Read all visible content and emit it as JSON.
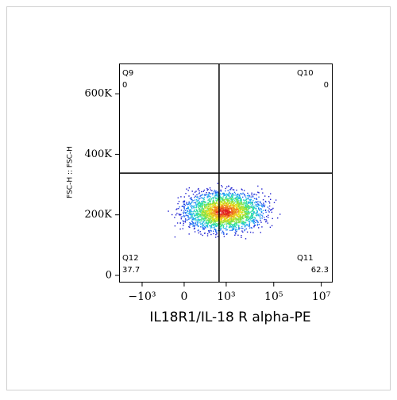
{
  "chart_data": {
    "type": "density",
    "xlabel": "IL18R1/IL-18 R alpha-PE",
    "ylabel": "FSC-H :: FSC-H",
    "xscale": "biexponential",
    "xlim": [
      -9300,
      28000000
    ],
    "xticks": [
      {
        "value": -1000,
        "label": "−10³"
      },
      0,
      {
        "value": 1000,
        "label": "10³"
      },
      {
        "value": 100000,
        "label": "10⁵"
      },
      {
        "value": 10000000,
        "label": "10⁷"
      }
    ],
    "ylim": [
      -21000,
      700000
    ],
    "yticks": [
      0,
      {
        "value": 200000,
        "label": "200K"
      },
      {
        "value": 400000,
        "label": "400K"
      },
      {
        "value": 600000,
        "label": "600K"
      }
    ],
    "gate": {
      "x": 500,
      "y": 338000
    },
    "quadrants": [
      {
        "name": "Q9",
        "value": "0",
        "corner": "top-left"
      },
      {
        "name": "Q10",
        "value": "0",
        "corner": "top-right"
      },
      {
        "name": "Q11",
        "value": "62.3",
        "corner": "bottom-right"
      },
      {
        "name": "Q12",
        "value": "37.7",
        "corner": "bottom-left"
      }
    ]
  }
}
